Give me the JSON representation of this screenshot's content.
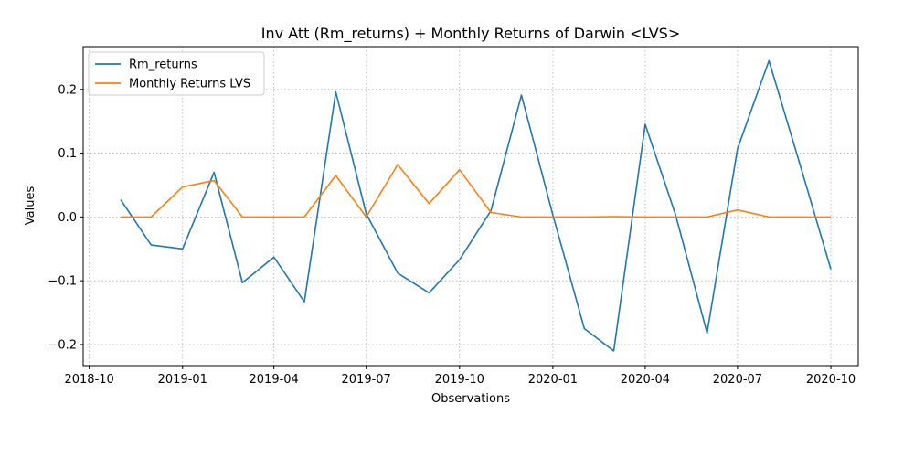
{
  "chart_data": {
    "type": "line",
    "title": "Inv Att (Rm_returns) + Monthly Returns of Darwin <LVS>",
    "xlabel": "Observations",
    "ylabel": "Values",
    "x": [
      "2018-11-01",
      "2018-12-01",
      "2019-01-01",
      "2019-02-01",
      "2019-03-01",
      "2019-04-01",
      "2019-05-01",
      "2019-06-01",
      "2019-07-01",
      "2019-08-01",
      "2019-09-01",
      "2019-10-01",
      "2019-11-01",
      "2019-12-01",
      "2020-01-01",
      "2020-02-01",
      "2020-03-01",
      "2020-04-01",
      "2020-05-01",
      "2020-06-01",
      "2020-07-01",
      "2020-08-01",
      "2020-09-01",
      "2020-10-01"
    ],
    "series": [
      {
        "name": "Rm_returns",
        "color": "#1f77b4",
        "values": [
          0.027,
          -0.044,
          -0.05,
          0.07,
          -0.103,
          -0.063,
          -0.133,
          0.196,
          0.005,
          -0.088,
          -0.119,
          -0.067,
          0.01,
          0.191,
          0.003,
          -0.175,
          -0.21,
          0.145,
          0.003,
          -0.182,
          0.107,
          0.245,
          0.08,
          -0.082
        ]
      },
      {
        "name": "Monthly Returns LVS",
        "color": "#ff7f0e",
        "values": [
          0.0,
          0.0,
          0.047,
          0.057,
          0.0,
          0.0,
          0.0,
          0.065,
          0.0,
          0.082,
          0.021,
          0.074,
          0.007,
          0.0,
          0.0,
          0.0,
          0.0005,
          0.0,
          0.0,
          0.0,
          0.011,
          0.0,
          0.0,
          0.0
        ]
      }
    ],
    "xlim": [
      "2018-09-25",
      "2020-10-28"
    ],
    "ylim": [
      -0.233,
      0.267
    ],
    "x_ticks": [
      {
        "date": "2018-10-01",
        "label": "2018-10"
      },
      {
        "date": "2019-01-01",
        "label": "2019-01"
      },
      {
        "date": "2019-04-01",
        "label": "2019-04"
      },
      {
        "date": "2019-07-01",
        "label": "2019-07"
      },
      {
        "date": "2019-10-01",
        "label": "2019-10"
      },
      {
        "date": "2020-01-01",
        "label": "2020-01"
      },
      {
        "date": "2020-04-01",
        "label": "2020-04"
      },
      {
        "date": "2020-07-01",
        "label": "2020-07"
      },
      {
        "date": "2020-10-01",
        "label": "2020-10"
      }
    ],
    "y_ticks": [
      {
        "value": -0.2,
        "label": "−0.2"
      },
      {
        "value": -0.1,
        "label": "−0.1"
      },
      {
        "value": 0.0,
        "label": "0.0"
      },
      {
        "value": 0.1,
        "label": "0.1"
      },
      {
        "value": 0.2,
        "label": "0.2"
      }
    ],
    "grid": true,
    "legend_position": "top-left"
  }
}
